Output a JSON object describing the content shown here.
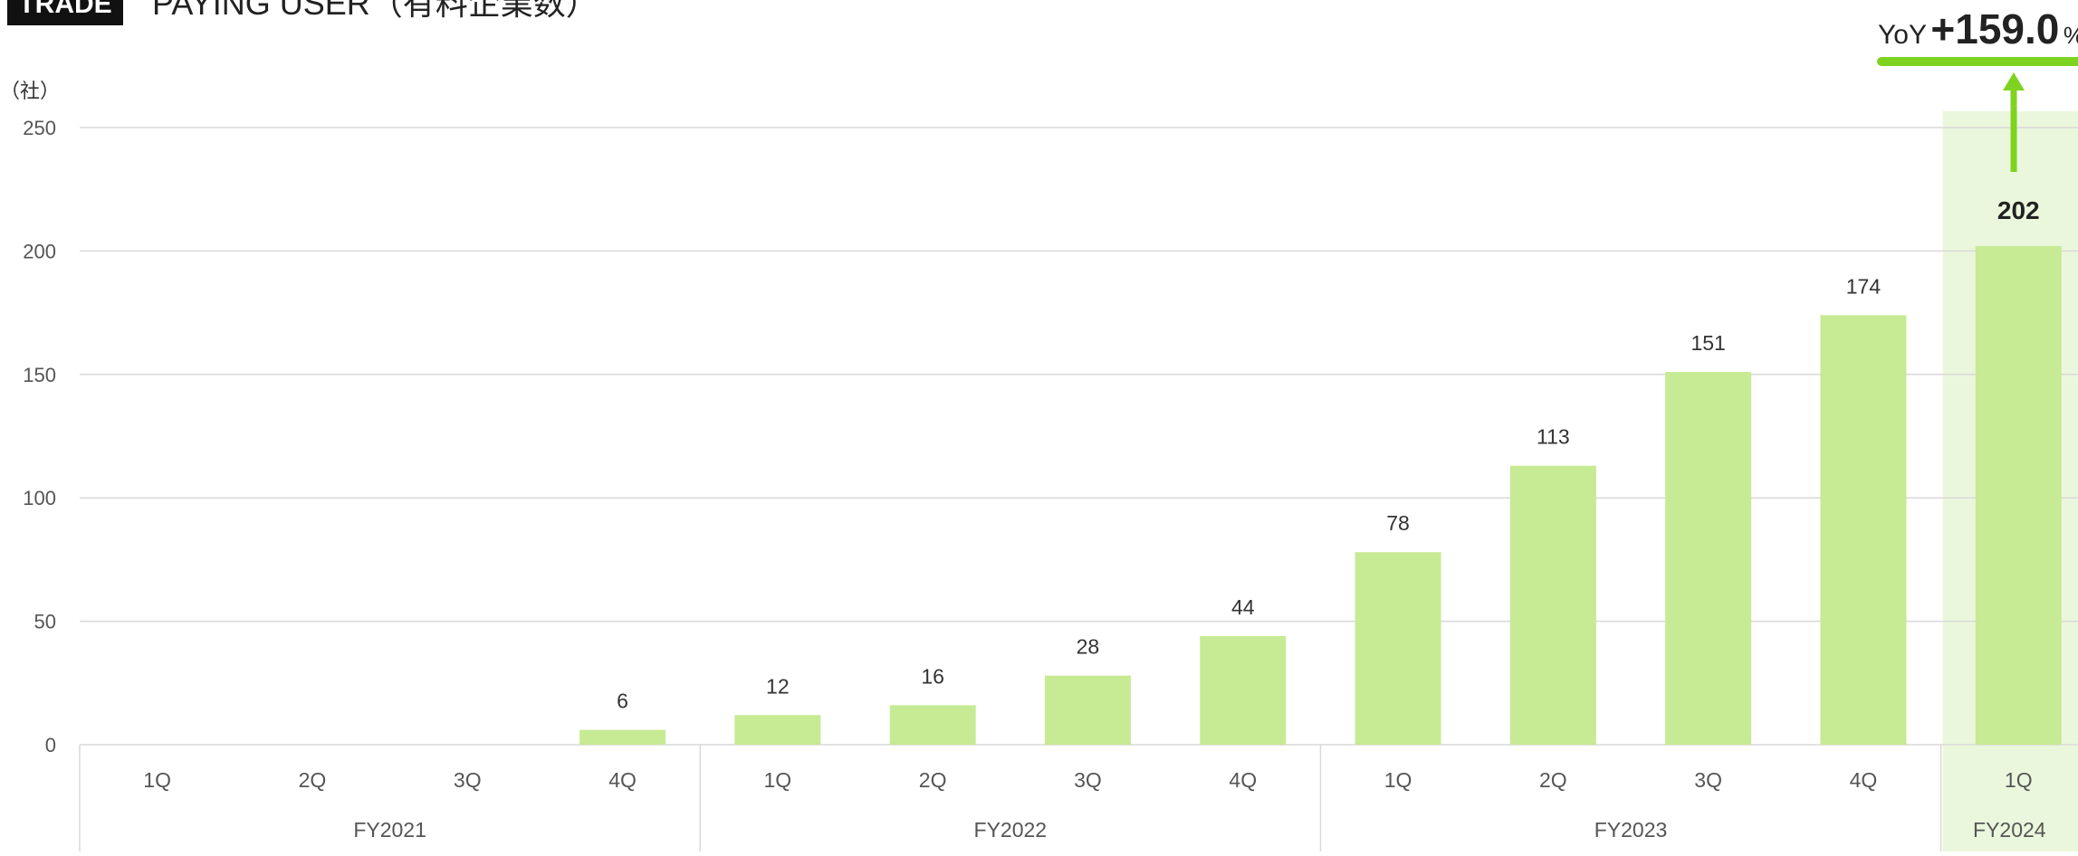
{
  "header": {
    "badge": "TRADE",
    "title": "PAYING USER（有料企業数）"
  },
  "colors": {
    "bar": "#c7ea94",
    "highlight_band": "#ebf7dc",
    "accent": "#7ed321",
    "grid": "#d9d9d9",
    "text": "#555555",
    "dark": "#222222"
  },
  "yoy": {
    "prefix": "YoY",
    "value": "+159.0",
    "suffix": "%"
  },
  "chart_data": {
    "type": "bar",
    "ylabel": "（社）",
    "ylim": [
      0,
      250
    ],
    "yticks": [
      0,
      50,
      100,
      150,
      200,
      250
    ],
    "categories": [
      "1Q",
      "2Q",
      "3Q",
      "4Q",
      "1Q",
      "2Q",
      "3Q",
      "4Q",
      "1Q",
      "2Q",
      "3Q",
      "4Q",
      "1Q"
    ],
    "groups": [
      {
        "label": "FY2021",
        "count": 4
      },
      {
        "label": "FY2022",
        "count": 4
      },
      {
        "label": "FY2023",
        "count": 4
      },
      {
        "label": "FY2024",
        "count": 1
      }
    ],
    "series": [
      {
        "values": [
          null,
          null,
          null,
          6,
          12,
          16,
          28,
          44,
          78,
          113,
          151,
          174,
          202
        ],
        "data_labels": [
          "",
          "",
          "",
          "6",
          "12",
          "16",
          "28",
          "44",
          "78",
          "113",
          "151",
          "174",
          "202"
        ]
      }
    ],
    "highlight_index": 12,
    "grid": true,
    "legend": "none"
  }
}
